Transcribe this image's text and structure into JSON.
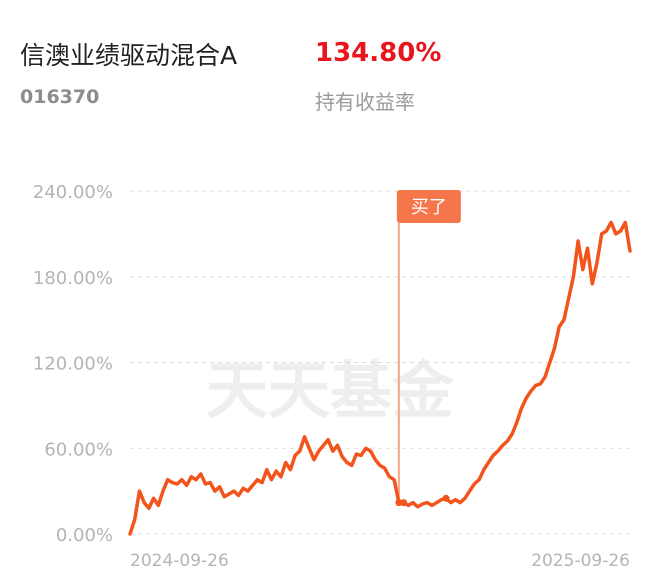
{
  "header": {
    "fund_name": "信澳业绩驱动混合A",
    "return_value": "134.80%",
    "fund_code": "016370",
    "return_label": "持有收益率"
  },
  "colors": {
    "return": "#e8141e",
    "line": "#f2541b",
    "marker_line": "#f7a489",
    "badge": "#f4764a",
    "grid": "#dcdcdc",
    "axis_text": "#b4b4b4"
  },
  "chart_data": {
    "type": "line",
    "title": "",
    "xlabel": "",
    "ylabel": "",
    "ylim": [
      0,
      240
    ],
    "y_ticks": [
      "0.00%",
      "60.00%",
      "120.00%",
      "180.00%",
      "240.00%"
    ],
    "x_tick_labels": [
      "2024-09-26",
      "2025-09-26"
    ],
    "watermark": "天天基金",
    "buy_label": "买了",
    "grid": true,
    "series": [
      {
        "values": [
          0,
          10,
          30,
          22,
          18,
          25,
          20,
          30,
          38,
          36,
          35,
          38,
          34,
          40,
          38,
          42,
          35,
          36,
          30,
          33,
          26,
          28,
          30,
          27,
          32,
          30,
          34,
          38,
          36,
          45,
          38,
          44,
          40,
          50,
          45,
          55,
          58,
          68,
          60,
          52,
          58,
          62,
          66,
          58,
          62,
          54,
          50,
          48,
          56,
          55,
          60,
          58,
          52,
          48,
          46,
          40,
          38,
          22,
          22,
          20,
          22,
          19,
          21,
          22,
          20,
          22,
          24,
          25,
          22,
          24,
          22,
          25,
          30,
          35,
          38,
          45,
          50,
          55,
          58,
          62,
          65,
          70,
          78,
          88,
          95,
          100,
          104,
          105,
          110,
          120,
          130,
          145,
          150,
          165,
          180,
          205,
          185,
          200,
          175,
          190,
          210,
          212,
          218,
          210,
          212,
          218,
          198
        ]
      }
    ],
    "buy_index": 57
  }
}
